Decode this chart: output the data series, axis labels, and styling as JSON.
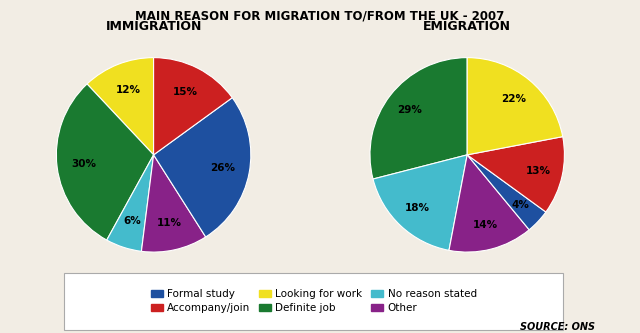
{
  "title": "MAIN REASON FOR MIGRATION TO/FROM THE UK - 2007",
  "immigration_title": "IMMIGRATION",
  "emigration_title": "EMIGRATION",
  "source": "SOURCE: ONS",
  "categories": [
    "Formal study",
    "Accompany/join",
    "Looking for work",
    "Definite job",
    "No reason stated",
    "Other"
  ],
  "colors": [
    "#1e50a0",
    "#cc2020",
    "#f0e020",
    "#1a7a30",
    "#44bbcc",
    "#882288"
  ],
  "immigration_values": [
    26,
    15,
    12,
    30,
    6,
    11
  ],
  "emigration_values": [
    4,
    13,
    22,
    29,
    18,
    14
  ],
  "background_color": "#f2ede4",
  "imm_wedge_order": [
    0,
    5,
    4,
    3,
    2,
    1
  ],
  "em_wedge_order": [
    0,
    5,
    4,
    3,
    2,
    1
  ],
  "imm_startangle": 0,
  "em_startangle": 0
}
